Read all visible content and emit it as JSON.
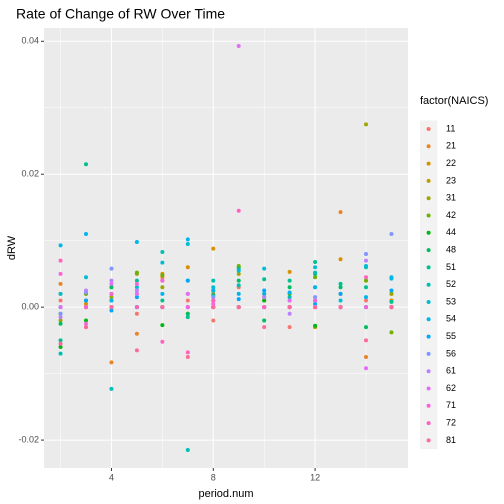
{
  "chart_data": {
    "type": "scatter",
    "title": "Rate of Change of RW Over Time",
    "x_label": "period.num",
    "y_label": "dRW",
    "legend_title": "factor(NAICS)",
    "legend": "right",
    "grid": true,
    "xlim": [
      1.35,
      15.65
    ],
    "xticks": [
      4,
      8,
      12
    ],
    "xminor": [
      2,
      6,
      10,
      14
    ],
    "ylim": [
      -0.0242,
      0.042
    ],
    "yticks": [
      -0.02,
      {
        "value": 0,
        "label": "0.00"
      },
      0.02,
      0.04
    ],
    "yminor": [
      -0.01,
      0.01,
      0.03
    ],
    "x": [
      2,
      3,
      4,
      5,
      6,
      7,
      8,
      9,
      10,
      11,
      12,
      13,
      14,
      15
    ],
    "series": [
      {
        "name": "11",
        "color": "#F8766D",
        "values": [
          0.001,
          -0.003,
          0.0,
          -0.001,
          0.0,
          0.001,
          -0.002,
          0.003,
          0.001,
          -0.003,
          0.0,
          0.002,
          0.001,
          0.002
        ]
      },
      {
        "name": "21",
        "color": "#E9842C",
        "values": [
          0.0035,
          0.002,
          -0.0083,
          -0.004,
          0.0045,
          0.0,
          0.0,
          0.0,
          0.0,
          0.002,
          0.0,
          0.0143,
          -0.0075,
          0.0
        ]
      },
      {
        "name": "22",
        "color": "#D69100",
        "values": [
          0.002,
          0.0005,
          0.001,
          0.002,
          0.005,
          0.006,
          0.0088,
          0.0,
          0.001,
          0.0053,
          0.003,
          0.0072,
          0.0,
          0.001
        ]
      },
      {
        "name": "23",
        "color": "#BC9D00",
        "values": [
          0.0,
          0.001,
          0.003,
          0.0,
          0.004,
          -0.001,
          0.002,
          0.006,
          0.002,
          0.001,
          -0.003,
          0.002,
          0.004,
          0.0
        ]
      },
      {
        "name": "31",
        "color": "#9CA700",
        "values": [
          -0.002,
          0.0,
          0.0015,
          0.005,
          0.003,
          0.004,
          0.001,
          0.005,
          0.0,
          0.0,
          0.001,
          0.0,
          0.0275,
          0.002
        ]
      },
      {
        "name": "42",
        "color": "#6FB000",
        "values": [
          -0.001,
          0.002,
          0.0,
          0.0052,
          0.0048,
          0.002,
          0.0,
          0.0062,
          0.0015,
          0.002,
          0.0045,
          0.0,
          0.004,
          -0.0038
        ]
      },
      {
        "name": "44",
        "color": "#00B813",
        "values": [
          -0.006,
          -0.002,
          0.0,
          0.0,
          -0.0027,
          0.0,
          0.0,
          0.0,
          0.001,
          0.0,
          -0.0028,
          0.0,
          0.0,
          0.0
        ]
      },
      {
        "name": "48",
        "color": "#00BD61",
        "values": [
          -0.0025,
          0.0,
          0.003,
          0.0,
          0.0,
          -0.001,
          0.0025,
          0.004,
          -0.002,
          0.003,
          0.005,
          0.003,
          -0.003,
          0.0
        ]
      },
      {
        "name": "51",
        "color": "#00C08E",
        "values": [
          -0.005,
          0.0215,
          0.002,
          0.004,
          0.001,
          -0.0015,
          0.0018,
          0.0058,
          0.0042,
          0.004,
          0.0068,
          0.0035,
          0.003,
          0.0008
        ]
      },
      {
        "name": "52",
        "color": "#00C0B4",
        "values": [
          -0.007,
          0.0,
          -0.0123,
          0.0,
          0.0083,
          -0.0215,
          0.004,
          0.0033,
          0.0,
          0.0015,
          0.0052,
          0.0,
          0.006,
          0.0
        ]
      },
      {
        "name": "53",
        "color": "#00BDD4",
        "values": [
          0.002,
          0.0045,
          0.001,
          0.003,
          0.0067,
          0.0095,
          0.003,
          0.0055,
          0.0058,
          0.0,
          0.006,
          0.001,
          0.0062,
          0.0043
        ]
      },
      {
        "name": "54",
        "color": "#00B5EE",
        "values": [
          0.0093,
          0.011,
          0.001,
          0.0098,
          0.002,
          0.0102,
          0.0025,
          0.002,
          0.002,
          0.0022,
          0.003,
          0.0,
          0.0015,
          0.0045
        ]
      },
      {
        "name": "55",
        "color": "#00A7FF",
        "values": [
          0.0,
          0.001,
          -0.0005,
          0.0015,
          0.0,
          0.004,
          0.0,
          0.0012,
          0.0025,
          0.0,
          0.0005,
          0.002,
          0.0,
          0.0025
        ]
      },
      {
        "name": "56",
        "color": "#7F96FF",
        "values": [
          -0.001,
          0.0022,
          0.0058,
          0.0,
          0.0,
          0.0,
          0.0015,
          0.0,
          0.0,
          0.0,
          0.0015,
          0.0,
          0.008,
          0.011
        ]
      },
      {
        "name": "61",
        "color": "#BC81FF",
        "values": [
          -0.0015,
          0.0025,
          0.004,
          0.0025,
          0.0,
          0.0,
          0.001,
          0.0,
          0.0015,
          -0.001,
          0.0,
          0.0,
          0.007,
          0.0
        ]
      },
      {
        "name": "62",
        "color": "#E26EF7",
        "values": [
          0.0,
          0.0,
          0.0035,
          0.002,
          0.0,
          0.002,
          0.0,
          0.0393,
          0.0,
          0.001,
          0.0,
          0.0,
          -0.0092,
          0.0
        ]
      },
      {
        "name": "71",
        "color": "#F863DF",
        "values": [
          0.005,
          -0.0025,
          0.002,
          0.0035,
          0.004,
          0.0,
          0.0005,
          0.0,
          0.0,
          0.0,
          0.001,
          0.0,
          0.0,
          0.0
        ]
      },
      {
        "name": "72",
        "color": "#FF62BF",
        "values": [
          0.007,
          0.0,
          0.0,
          0.0,
          -0.0052,
          -0.0068,
          0.001,
          0.0145,
          0.0,
          0.0,
          0.0,
          0.0,
          0.0045,
          0.0
        ]
      },
      {
        "name": "81",
        "color": "#FF6A9A",
        "values": [
          -0.0055,
          -0.003,
          0.0,
          -0.0065,
          0.0,
          -0.0075,
          0.0,
          0.0,
          -0.003,
          0.0,
          0.0,
          0.0,
          -0.005,
          0.0
        ]
      }
    ]
  }
}
